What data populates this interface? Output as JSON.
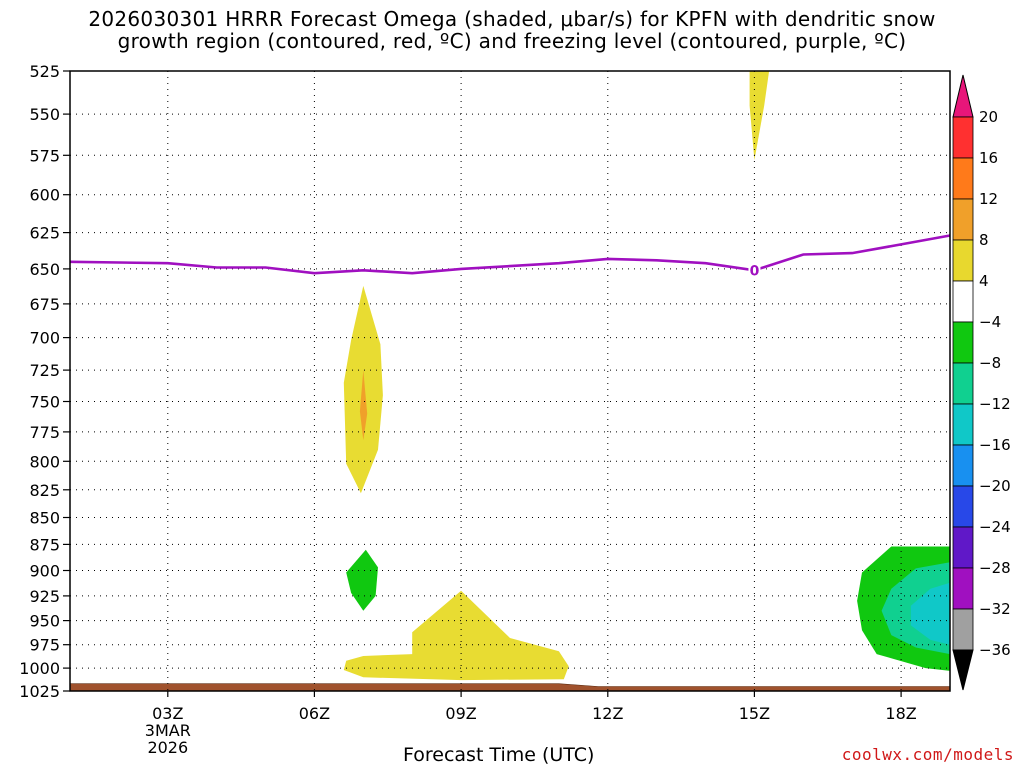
{
  "title": {
    "line1": "2026030301 HRRR Forecast Omega (shaded, μbar/s) for KPFN with dendritic snow",
    "line2": "growth region (contoured, red, ºC) and freezing level (contoured, purple, ºC)"
  },
  "credit": "coolwx.com/models",
  "chart_data": {
    "type": "heatmap",
    "xlabel": "Forecast Time (UTC)",
    "ylabel": "",
    "x_unit": "hours after 2026-03-03 00Z",
    "xlim": [
      1.0,
      19.0
    ],
    "ylim": [
      1025,
      525
    ],
    "x_ticks": [
      {
        "x": 3,
        "label": "03Z"
      },
      {
        "x": 6,
        "label": "06Z"
      },
      {
        "x": 9,
        "label": "09Z"
      },
      {
        "x": 12,
        "label": "12Z"
      },
      {
        "x": 15,
        "label": "15Z"
      },
      {
        "x": 18,
        "label": "18Z"
      }
    ],
    "date_label": [
      "3MAR",
      "2026"
    ],
    "y_ticks": [
      525,
      550,
      575,
      600,
      625,
      650,
      675,
      700,
      725,
      750,
      775,
      800,
      825,
      850,
      875,
      900,
      925,
      950,
      975,
      1000,
      1025
    ],
    "grid": true,
    "colorbar": {
      "levels": [
        20,
        16,
        12,
        8,
        4,
        -4,
        -8,
        -12,
        -16,
        -20,
        -24,
        -28,
        -32,
        -36
      ],
      "colors": [
        "#e8167a",
        "#ff3030",
        "#ff7a1a",
        "#f0a02a",
        "#e8d82e",
        "#ffffff",
        "#10c810",
        "#10d090",
        "#10c8c8",
        "#1890f0",
        "#2848e8",
        "#6018c8",
        "#a010c0",
        "#a0a0a0",
        "#000000"
      ]
    },
    "colors": {
      "yellow": "#e8dc32",
      "orange": "#f0a02a",
      "green": "#10c810",
      "teal": "#10d090",
      "cyan": "#10c8c8",
      "freezing_line": "#a010c0",
      "ground": "#a0522d"
    },
    "omega_regions": [
      {
        "name": "upper-yellow",
        "fill": "yellow",
        "points": [
          [
            14.9,
            525
          ],
          [
            15.3,
            525
          ],
          [
            15.2,
            545
          ],
          [
            15.0,
            578
          ],
          [
            14.9,
            545
          ]
        ]
      },
      {
        "name": "mid-yellow",
        "fill": "yellow",
        "points": [
          [
            7.0,
            662
          ],
          [
            7.35,
            705
          ],
          [
            7.4,
            745
          ],
          [
            7.3,
            790
          ],
          [
            6.95,
            828
          ],
          [
            6.65,
            802
          ],
          [
            6.6,
            735
          ],
          [
            6.75,
            702
          ]
        ]
      },
      {
        "name": "mid-orange",
        "fill": "orange",
        "points": [
          [
            7.0,
            725
          ],
          [
            7.08,
            760
          ],
          [
            7.0,
            782
          ],
          [
            6.93,
            758
          ]
        ]
      },
      {
        "name": "low-green",
        "fill": "green",
        "points": [
          [
            7.05,
            880
          ],
          [
            7.3,
            897
          ],
          [
            7.25,
            925
          ],
          [
            7.0,
            940
          ],
          [
            6.75,
            922
          ],
          [
            6.65,
            902
          ]
        ]
      },
      {
        "name": "low-yellow",
        "fill": "yellow",
        "points": [
          [
            6.65,
            992
          ],
          [
            7.0,
            987
          ],
          [
            8.0,
            985
          ],
          [
            8.0,
            962
          ],
          [
            9.0,
            920
          ],
          [
            10.0,
            968
          ],
          [
            11.0,
            982
          ],
          [
            11.2,
            998
          ],
          [
            11.1,
            1012
          ],
          [
            9.0,
            1013
          ],
          [
            7.0,
            1010
          ],
          [
            6.6,
            1002
          ]
        ]
      },
      {
        "name": "right-green",
        "fill": "green",
        "points": [
          [
            19.0,
            877
          ],
          [
            17.8,
            877
          ],
          [
            17.2,
            902
          ],
          [
            17.1,
            930
          ],
          [
            17.2,
            960
          ],
          [
            17.5,
            985
          ],
          [
            18.5,
            1000
          ],
          [
            19.0,
            1003
          ]
        ]
      },
      {
        "name": "right-teal",
        "fill": "teal",
        "points": [
          [
            19.0,
            892
          ],
          [
            18.3,
            898
          ],
          [
            17.8,
            918
          ],
          [
            17.6,
            940
          ],
          [
            17.8,
            965
          ],
          [
            18.3,
            978
          ],
          [
            19.0,
            985
          ]
        ]
      },
      {
        "name": "right-cyan",
        "fill": "cyan",
        "points": [
          [
            19.0,
            912
          ],
          [
            18.6,
            918
          ],
          [
            18.2,
            935
          ],
          [
            18.2,
            955
          ],
          [
            18.6,
            970
          ],
          [
            19.0,
            975
          ]
        ]
      }
    ],
    "freezing_level": {
      "label": "0",
      "label_x": 15.0,
      "points": [
        [
          1,
          645
        ],
        [
          3,
          646
        ],
        [
          4,
          649
        ],
        [
          5,
          649
        ],
        [
          6,
          653
        ],
        [
          7,
          651
        ],
        [
          8,
          653
        ],
        [
          9,
          650
        ],
        [
          10,
          648
        ],
        [
          11,
          646
        ],
        [
          12,
          643
        ],
        [
          13,
          644
        ],
        [
          14,
          646
        ],
        [
          15,
          651
        ],
        [
          16,
          640
        ],
        [
          17,
          639
        ],
        [
          18,
          633
        ],
        [
          19,
          627
        ]
      ]
    },
    "ground_top": [
      [
        1,
        1017
      ],
      [
        11,
        1017
      ],
      [
        11.8,
        1020
      ],
      [
        19,
        1020
      ]
    ]
  }
}
